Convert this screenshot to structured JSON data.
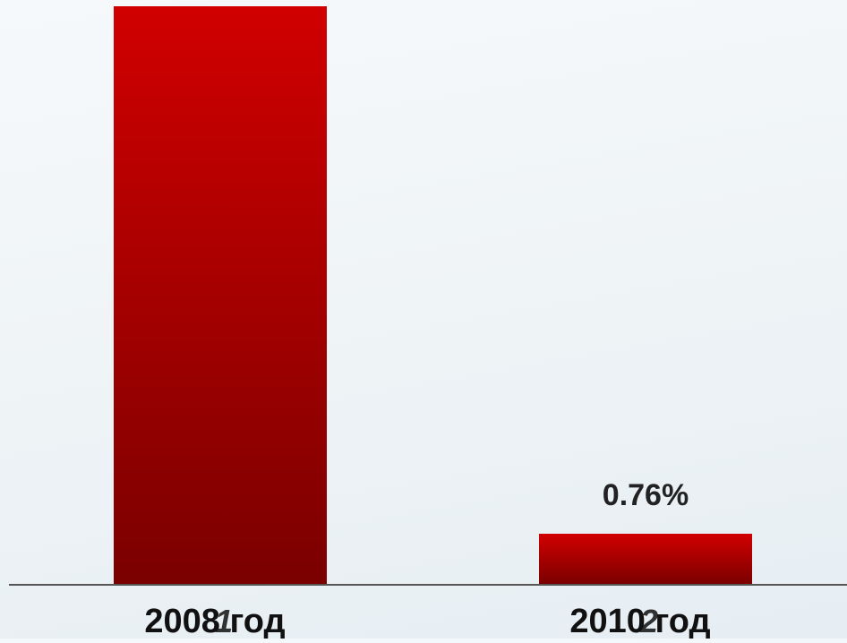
{
  "chart_data": {
    "type": "bar",
    "categories": [
      "2008 год",
      "2010 год"
    ],
    "category_overlay_numbers": [
      "1",
      "2"
    ],
    "values": [
      null,
      0.76
    ],
    "data_labels": [
      "",
      "0.76%"
    ],
    "value_unit": "%",
    "title": "",
    "xlabel": "",
    "ylabel": "",
    "grid": false,
    "legend": "none",
    "colors": {
      "bar_top": "#d10000",
      "bar_bottom": "#7a0000",
      "axis": "#555555",
      "label_text": "#111111",
      "value_label_text": "#222222"
    }
  }
}
